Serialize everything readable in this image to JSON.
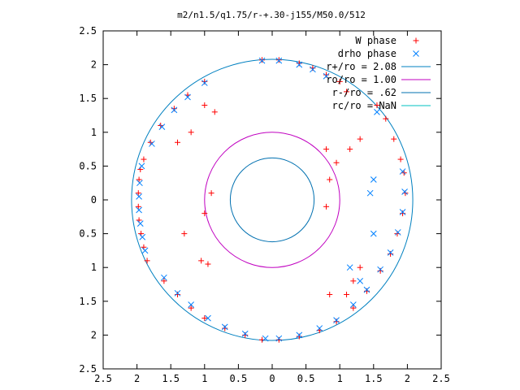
{
  "chart_data": {
    "type": "scatter",
    "title": "m2/n1.5/q1.75/r-+.30-j155/M50.0/512",
    "xlabel": "",
    "ylabel": "",
    "xlim": [
      -2.5,
      2.5
    ],
    "ylim": [
      -2.5,
      2.5
    ],
    "xtick_labels": [
      "2.5",
      "2",
      "1.5",
      "1",
      "0.5",
      "0",
      "0.5",
      "1",
      "1.5",
      "2",
      "2.5"
    ],
    "ytick_labels": [
      "2.5",
      "2",
      "1.5",
      "1",
      "0.5",
      "0",
      "0.5",
      "1",
      "1.5",
      "2",
      "2.5"
    ],
    "grid": false,
    "legend_position": "top-right",
    "colors": {
      "w_phase": "#ff0000",
      "drho_phase": "#0080ff",
      "r_plus_circle": "#0080c0",
      "ro_circle": "#c000c0",
      "r_minus_circle": "#0070b0",
      "rc_circle": "#00c0c0"
    },
    "legend": [
      {
        "label": "W phase",
        "marker": "plus",
        "color": "#ff0000"
      },
      {
        "label": "drho phase",
        "marker": "cross",
        "color": "#0080ff"
      },
      {
        "label": "r+/ro = 2.08",
        "marker": "line",
        "color": "#0080c0"
      },
      {
        "label": "ro/ro = 1.00",
        "marker": "line",
        "color": "#c000c0"
      },
      {
        "label": "r-/ro = .62",
        "marker": "line",
        "color": "#0070b0"
      },
      {
        "label": "rc/ro = NaN",
        "marker": "line",
        "color": "#00c0c0"
      }
    ],
    "circles": [
      {
        "radius": 2.08,
        "color": "#0080c0"
      },
      {
        "radius": 1.0,
        "color": "#c000c0"
      },
      {
        "radius": 0.62,
        "color": "#0070b0"
      }
    ],
    "series": [
      {
        "name": "W phase",
        "marker": "plus",
        "points": [
          [
            -1.95,
            0.45
          ],
          [
            -1.97,
            0.3
          ],
          [
            -1.98,
            0.1
          ],
          [
            -1.98,
            -0.1
          ],
          [
            -1.97,
            -0.3
          ],
          [
            -1.94,
            -0.5
          ],
          [
            -1.9,
            -0.7
          ],
          [
            -1.85,
            -0.9
          ],
          [
            -1.6,
            -1.2
          ],
          [
            -1.4,
            -1.4
          ],
          [
            -1.2,
            -1.6
          ],
          [
            -1.0,
            -1.75
          ],
          [
            -0.7,
            -1.9
          ],
          [
            -0.4,
            -2.0
          ],
          [
            -0.15,
            -2.07
          ],
          [
            0.1,
            -2.07
          ],
          [
            0.4,
            -2.02
          ],
          [
            0.7,
            -1.93
          ],
          [
            0.95,
            -1.8
          ],
          [
            1.2,
            -1.6
          ],
          [
            1.4,
            -1.35
          ],
          [
            1.6,
            -1.05
          ],
          [
            1.75,
            -0.8
          ],
          [
            1.85,
            -0.5
          ],
          [
            1.93,
            -0.2
          ],
          [
            1.97,
            0.1
          ],
          [
            1.95,
            0.4
          ],
          [
            1.9,
            0.6
          ],
          [
            1.8,
            0.9
          ],
          [
            1.68,
            1.2
          ],
          [
            1.55,
            1.4
          ],
          [
            -0.15,
            2.07
          ],
          [
            0.1,
            2.07
          ],
          [
            0.4,
            2.02
          ],
          [
            0.6,
            1.95
          ],
          [
            0.8,
            1.85
          ],
          [
            1.0,
            1.75
          ],
          [
            1.1,
            1.6
          ],
          [
            -1.0,
            1.75
          ],
          [
            -1.25,
            1.55
          ],
          [
            -1.45,
            1.35
          ],
          [
            -1.65,
            1.1
          ],
          [
            -1.8,
            0.85
          ],
          [
            -1.9,
            0.6
          ],
          [
            -1.2,
            1.0
          ],
          [
            -1.4,
            0.85
          ],
          [
            -1.0,
            1.4
          ],
          [
            -0.85,
            1.3
          ],
          [
            1.3,
            0.9
          ],
          [
            1.15,
            0.75
          ],
          [
            0.95,
            0.55
          ],
          [
            0.8,
            0.75
          ],
          [
            0.85,
            0.3
          ],
          [
            0.8,
            -0.1
          ],
          [
            -1.05,
            -0.9
          ],
          [
            -0.95,
            -0.95
          ],
          [
            -1.3,
            -0.5
          ],
          [
            -1.0,
            -0.2
          ],
          [
            -0.9,
            0.1
          ],
          [
            1.2,
            -1.2
          ],
          [
            1.1,
            -1.4
          ],
          [
            0.85,
            -1.4
          ],
          [
            1.3,
            -1.0
          ]
        ]
      },
      {
        "name": "drho phase",
        "marker": "cross",
        "points": [
          [
            -1.93,
            0.5
          ],
          [
            -1.96,
            0.25
          ],
          [
            -1.97,
            0.05
          ],
          [
            -1.97,
            -0.15
          ],
          [
            -1.95,
            -0.35
          ],
          [
            -1.92,
            -0.55
          ],
          [
            -1.88,
            -0.75
          ],
          [
            -1.6,
            -1.15
          ],
          [
            -1.4,
            -1.38
          ],
          [
            -1.2,
            -1.55
          ],
          [
            -0.95,
            -1.75
          ],
          [
            -0.7,
            -1.88
          ],
          [
            -0.4,
            -1.98
          ],
          [
            -0.1,
            -2.05
          ],
          [
            0.1,
            -2.05
          ],
          [
            0.4,
            -2.0
          ],
          [
            0.7,
            -1.9
          ],
          [
            0.95,
            -1.78
          ],
          [
            1.5,
            -0.5
          ],
          [
            1.45,
            0.1
          ],
          [
            1.5,
            0.3
          ],
          [
            1.15,
            -1.0
          ],
          [
            1.3,
            -1.2
          ],
          [
            -0.15,
            2.06
          ],
          [
            0.1,
            2.06
          ],
          [
            0.4,
            2.0
          ],
          [
            0.6,
            1.93
          ],
          [
            0.8,
            1.83
          ],
          [
            1.55,
            1.3
          ],
          [
            1.2,
            -1.55
          ],
          [
            1.4,
            -1.33
          ],
          [
            1.6,
            -1.03
          ],
          [
            1.75,
            -0.78
          ],
          [
            1.86,
            -0.48
          ],
          [
            1.93,
            -0.18
          ],
          [
            1.96,
            0.12
          ],
          [
            1.93,
            0.42
          ],
          [
            -1.0,
            1.73
          ],
          [
            -1.25,
            1.52
          ],
          [
            -1.45,
            1.33
          ],
          [
            -1.63,
            1.08
          ],
          [
            -1.78,
            0.83
          ]
        ]
      }
    ]
  }
}
